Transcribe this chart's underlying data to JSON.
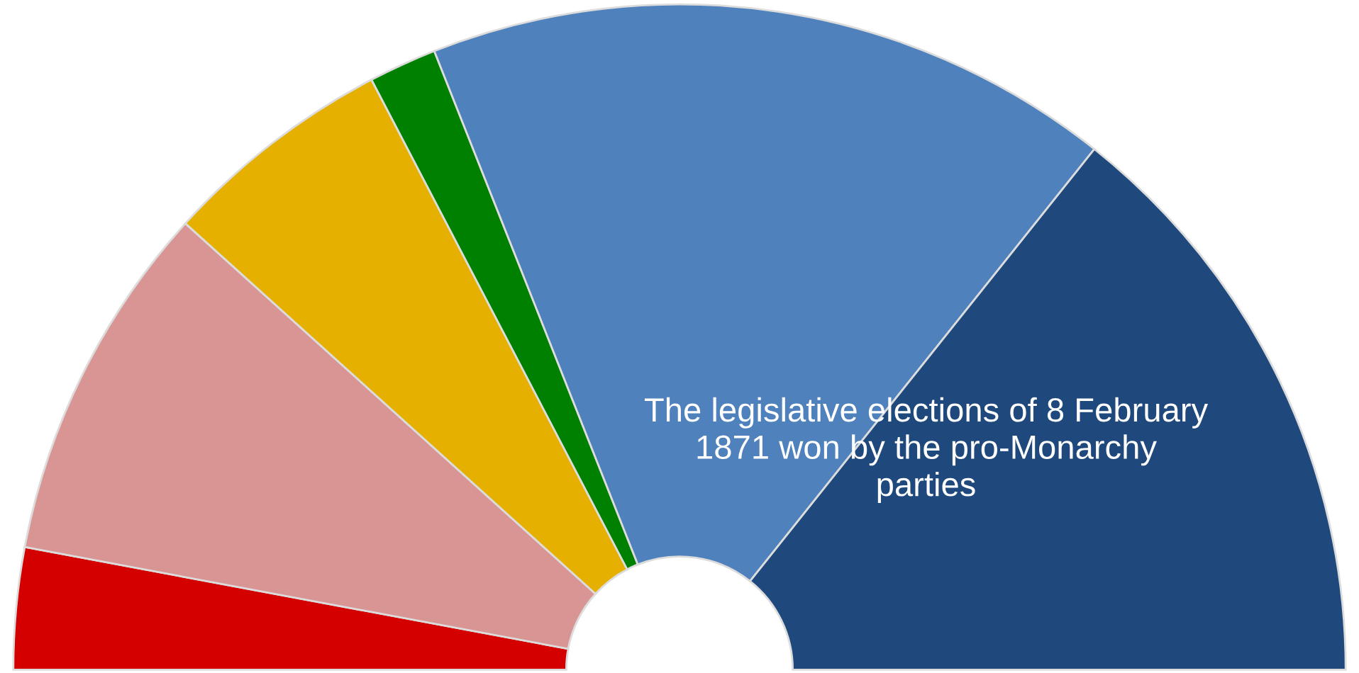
{
  "chart_data": {
    "type": "donut",
    "categories": [
      null,
      null,
      null,
      null,
      null,
      null
    ],
    "values": [
      5.9,
      17.5,
      11.3,
      3.3,
      33.4,
      28.6
    ],
    "colors": [
      "#d40000",
      "#d99594",
      "#e5b000",
      "#008000",
      "#4f81bd",
      "#1f497d"
    ],
    "annotations": [
      "The legislative elections of 8 February\n1871 won by the pro-Monarchy\nparties"
    ],
    "legend": false
  }
}
